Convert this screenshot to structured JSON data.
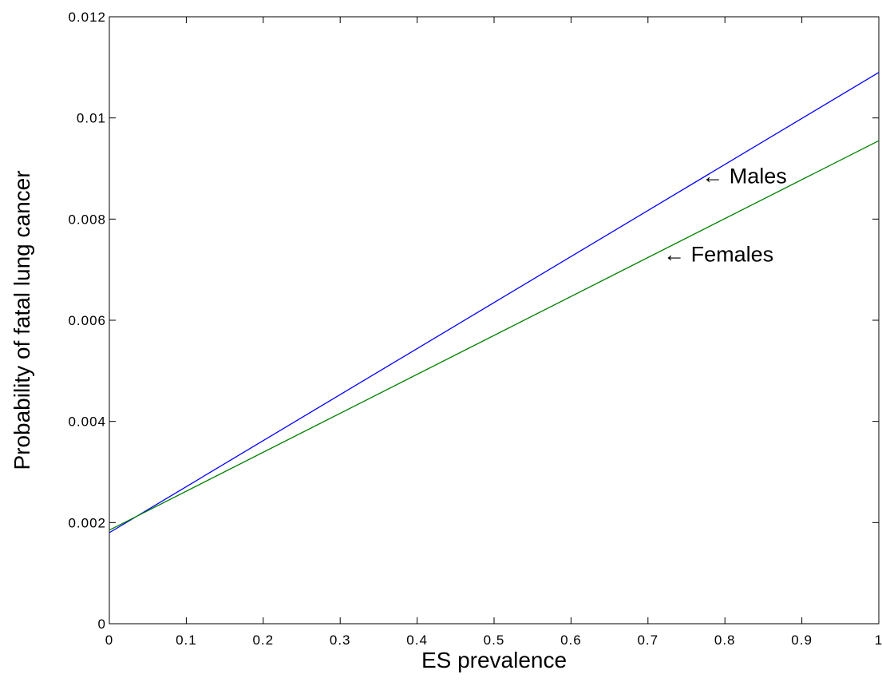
{
  "chart_data": {
    "type": "line",
    "title": "",
    "xlabel": "ES prevalence",
    "ylabel": "Probability of fatal lung cancer",
    "xlim": [
      0,
      1
    ],
    "ylim": [
      0,
      0.012
    ],
    "xticks": [
      0,
      0.1,
      0.2,
      0.3,
      0.4,
      0.5,
      0.6,
      0.7,
      0.8,
      0.9,
      1
    ],
    "xtick_labels": [
      "0",
      "0.1",
      "0.2",
      "0.3",
      "0.4",
      "0.5",
      "0.6",
      "0.7",
      "0.8",
      "0.9",
      "1"
    ],
    "yticks": [
      0,
      0.002,
      0.004,
      0.006,
      0.008,
      0.01,
      0.012
    ],
    "ytick_labels": [
      "0",
      "0.002",
      "0.004",
      "0.006",
      "0.008",
      "0.01",
      "0.012"
    ],
    "grid": false,
    "series": [
      {
        "name": "Males",
        "color": "#0000ff",
        "x": [
          0,
          1
        ],
        "y": [
          0.0018,
          0.0109
        ]
      },
      {
        "name": "Females",
        "color": "#008000",
        "x": [
          0,
          1
        ],
        "y": [
          0.00185,
          0.00955
        ]
      }
    ],
    "annotations": [
      {
        "text": "← Males",
        "x": 0.77,
        "y": 0.00885
      },
      {
        "text": "← Females",
        "x": 0.72,
        "y": 0.0073
      }
    ]
  }
}
